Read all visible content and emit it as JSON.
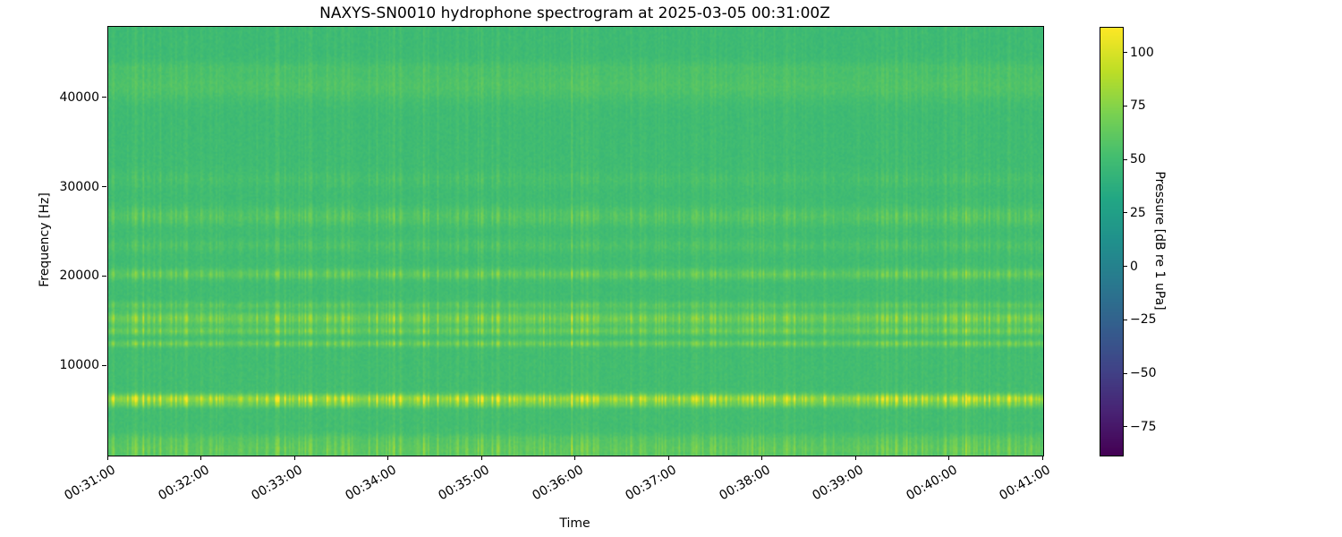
{
  "chart_data": {
    "type": "heatmap",
    "title": "NAXYS-SN0010 hydrophone spectrogram at 2025-03-05 00:31:00Z",
    "xlabel": "Time",
    "ylabel": "Frequency [Hz]",
    "x_tick_labels": [
      "00:31:00",
      "00:32:00",
      "00:33:00",
      "00:34:00",
      "00:35:00",
      "00:36:00",
      "00:37:00",
      "00:38:00",
      "00:39:00",
      "00:40:00",
      "00:41:00"
    ],
    "x_span_seconds": 600,
    "y_ticks": [
      10000,
      20000,
      30000,
      40000
    ],
    "ylim": [
      0,
      48000
    ],
    "colormap": "viridis",
    "colorbar_label": "Pressure [dB re 1 uPa]",
    "colorbar_ticks": [
      100,
      75,
      50,
      25,
      0,
      -25,
      -50,
      -75
    ],
    "colorbar_range": [
      -88,
      112
    ],
    "grid": false,
    "legend": "none",
    "background_db": 52,
    "bands": [
      {
        "freq_hz": 600,
        "width_hz": 700,
        "amp_db": 14,
        "steady": false
      },
      {
        "freq_hz": 1800,
        "width_hz": 400,
        "amp_db": 6,
        "steady": false
      },
      {
        "freq_hz": 5600,
        "width_hz": 250,
        "amp_db": 14,
        "steady": false
      },
      {
        "freq_hz": 6300,
        "width_hz": 350,
        "amp_db": 40,
        "steady": false
      },
      {
        "freq_hz": 12500,
        "width_hz": 250,
        "amp_db": 18,
        "steady": false
      },
      {
        "freq_hz": 13900,
        "width_hz": 300,
        "amp_db": 18,
        "steady": false
      },
      {
        "freq_hz": 15300,
        "width_hz": 500,
        "amp_db": 22,
        "steady": false
      },
      {
        "freq_hz": 16800,
        "width_hz": 300,
        "amp_db": 11,
        "steady": false
      },
      {
        "freq_hz": 20300,
        "width_hz": 400,
        "amp_db": 15,
        "steady": false
      },
      {
        "freq_hz": 23500,
        "width_hz": 500,
        "amp_db": 6,
        "steady": false
      },
      {
        "freq_hz": 26800,
        "width_hz": 700,
        "amp_db": 10,
        "steady": false
      },
      {
        "freq_hz": 31000,
        "width_hz": 600,
        "amp_db": 4,
        "steady": false
      },
      {
        "freq_hz": 41500,
        "width_hz": 1200,
        "amp_db": 8,
        "steady": true
      },
      {
        "freq_hz": 43500,
        "width_hz": 500,
        "amp_db": 4,
        "steady": true
      }
    ],
    "striations": {
      "description": "broadband vertical transient striations throughout the record, strongest below ~22 kHz",
      "approx_rate_per_minute": 20
    }
  }
}
